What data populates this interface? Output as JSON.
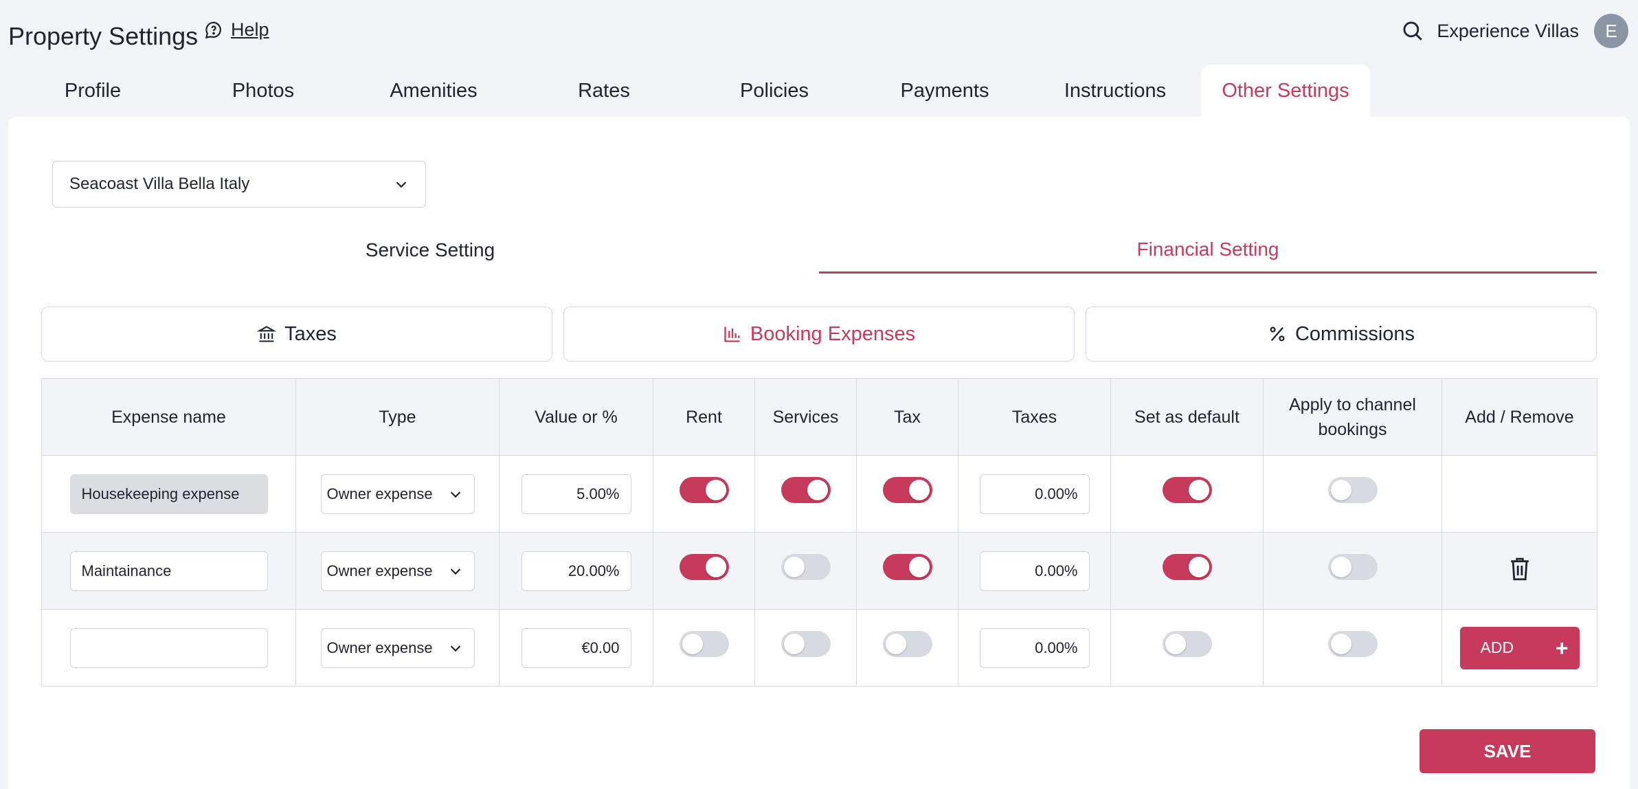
{
  "header": {
    "title": "Property Settings",
    "help_label": "Help",
    "org_name": "Experience Villas",
    "avatar_initial": "E"
  },
  "tabs": [
    {
      "label": "Profile"
    },
    {
      "label": "Photos"
    },
    {
      "label": "Amenities"
    },
    {
      "label": "Rates"
    },
    {
      "label": "Policies"
    },
    {
      "label": "Payments"
    },
    {
      "label": "Instructions"
    },
    {
      "label": "Other Settings",
      "active": true
    }
  ],
  "property_select": {
    "value": "Seacoast Villa Bella Italy"
  },
  "subtabs": [
    {
      "label": "Service Setting"
    },
    {
      "label": "Financial Setting",
      "active": true
    }
  ],
  "sections": [
    {
      "label": "Taxes",
      "icon": "bank-icon"
    },
    {
      "label": "Booking Expenses",
      "icon": "bar-chart-icon",
      "active": true
    },
    {
      "label": "Commissions",
      "icon": "percent-icon"
    }
  ],
  "table": {
    "columns": [
      "Expense name",
      "Type",
      "Value or %",
      "Rent",
      "Services",
      "Tax",
      "Taxes",
      "Set as default",
      "Apply to channel bookings",
      "Add / Remove"
    ],
    "rows": [
      {
        "name": "Housekeeping expense",
        "type": "Owner expense",
        "value": "5.00%",
        "rent": true,
        "services": true,
        "tax": true,
        "taxes": "0.00%",
        "default": true,
        "channel": false,
        "action": "none"
      },
      {
        "name": "Maintainance",
        "type": "Owner expense",
        "value": "20.00%",
        "rent": true,
        "services": false,
        "tax": true,
        "taxes": "0.00%",
        "default": true,
        "channel": false,
        "action": "trash-icon"
      },
      {
        "name": "",
        "type": "Owner expense",
        "value": "€0.00",
        "rent": false,
        "services": false,
        "tax": false,
        "taxes": "0.00%",
        "default": false,
        "channel": false,
        "action": "add"
      }
    ],
    "add_label": "ADD"
  },
  "save_label": "SAVE",
  "colors": {
    "accent": "#c63a5b",
    "background": "#f3f4f7",
    "text": "#1f2430",
    "border": "#d7dae0"
  }
}
